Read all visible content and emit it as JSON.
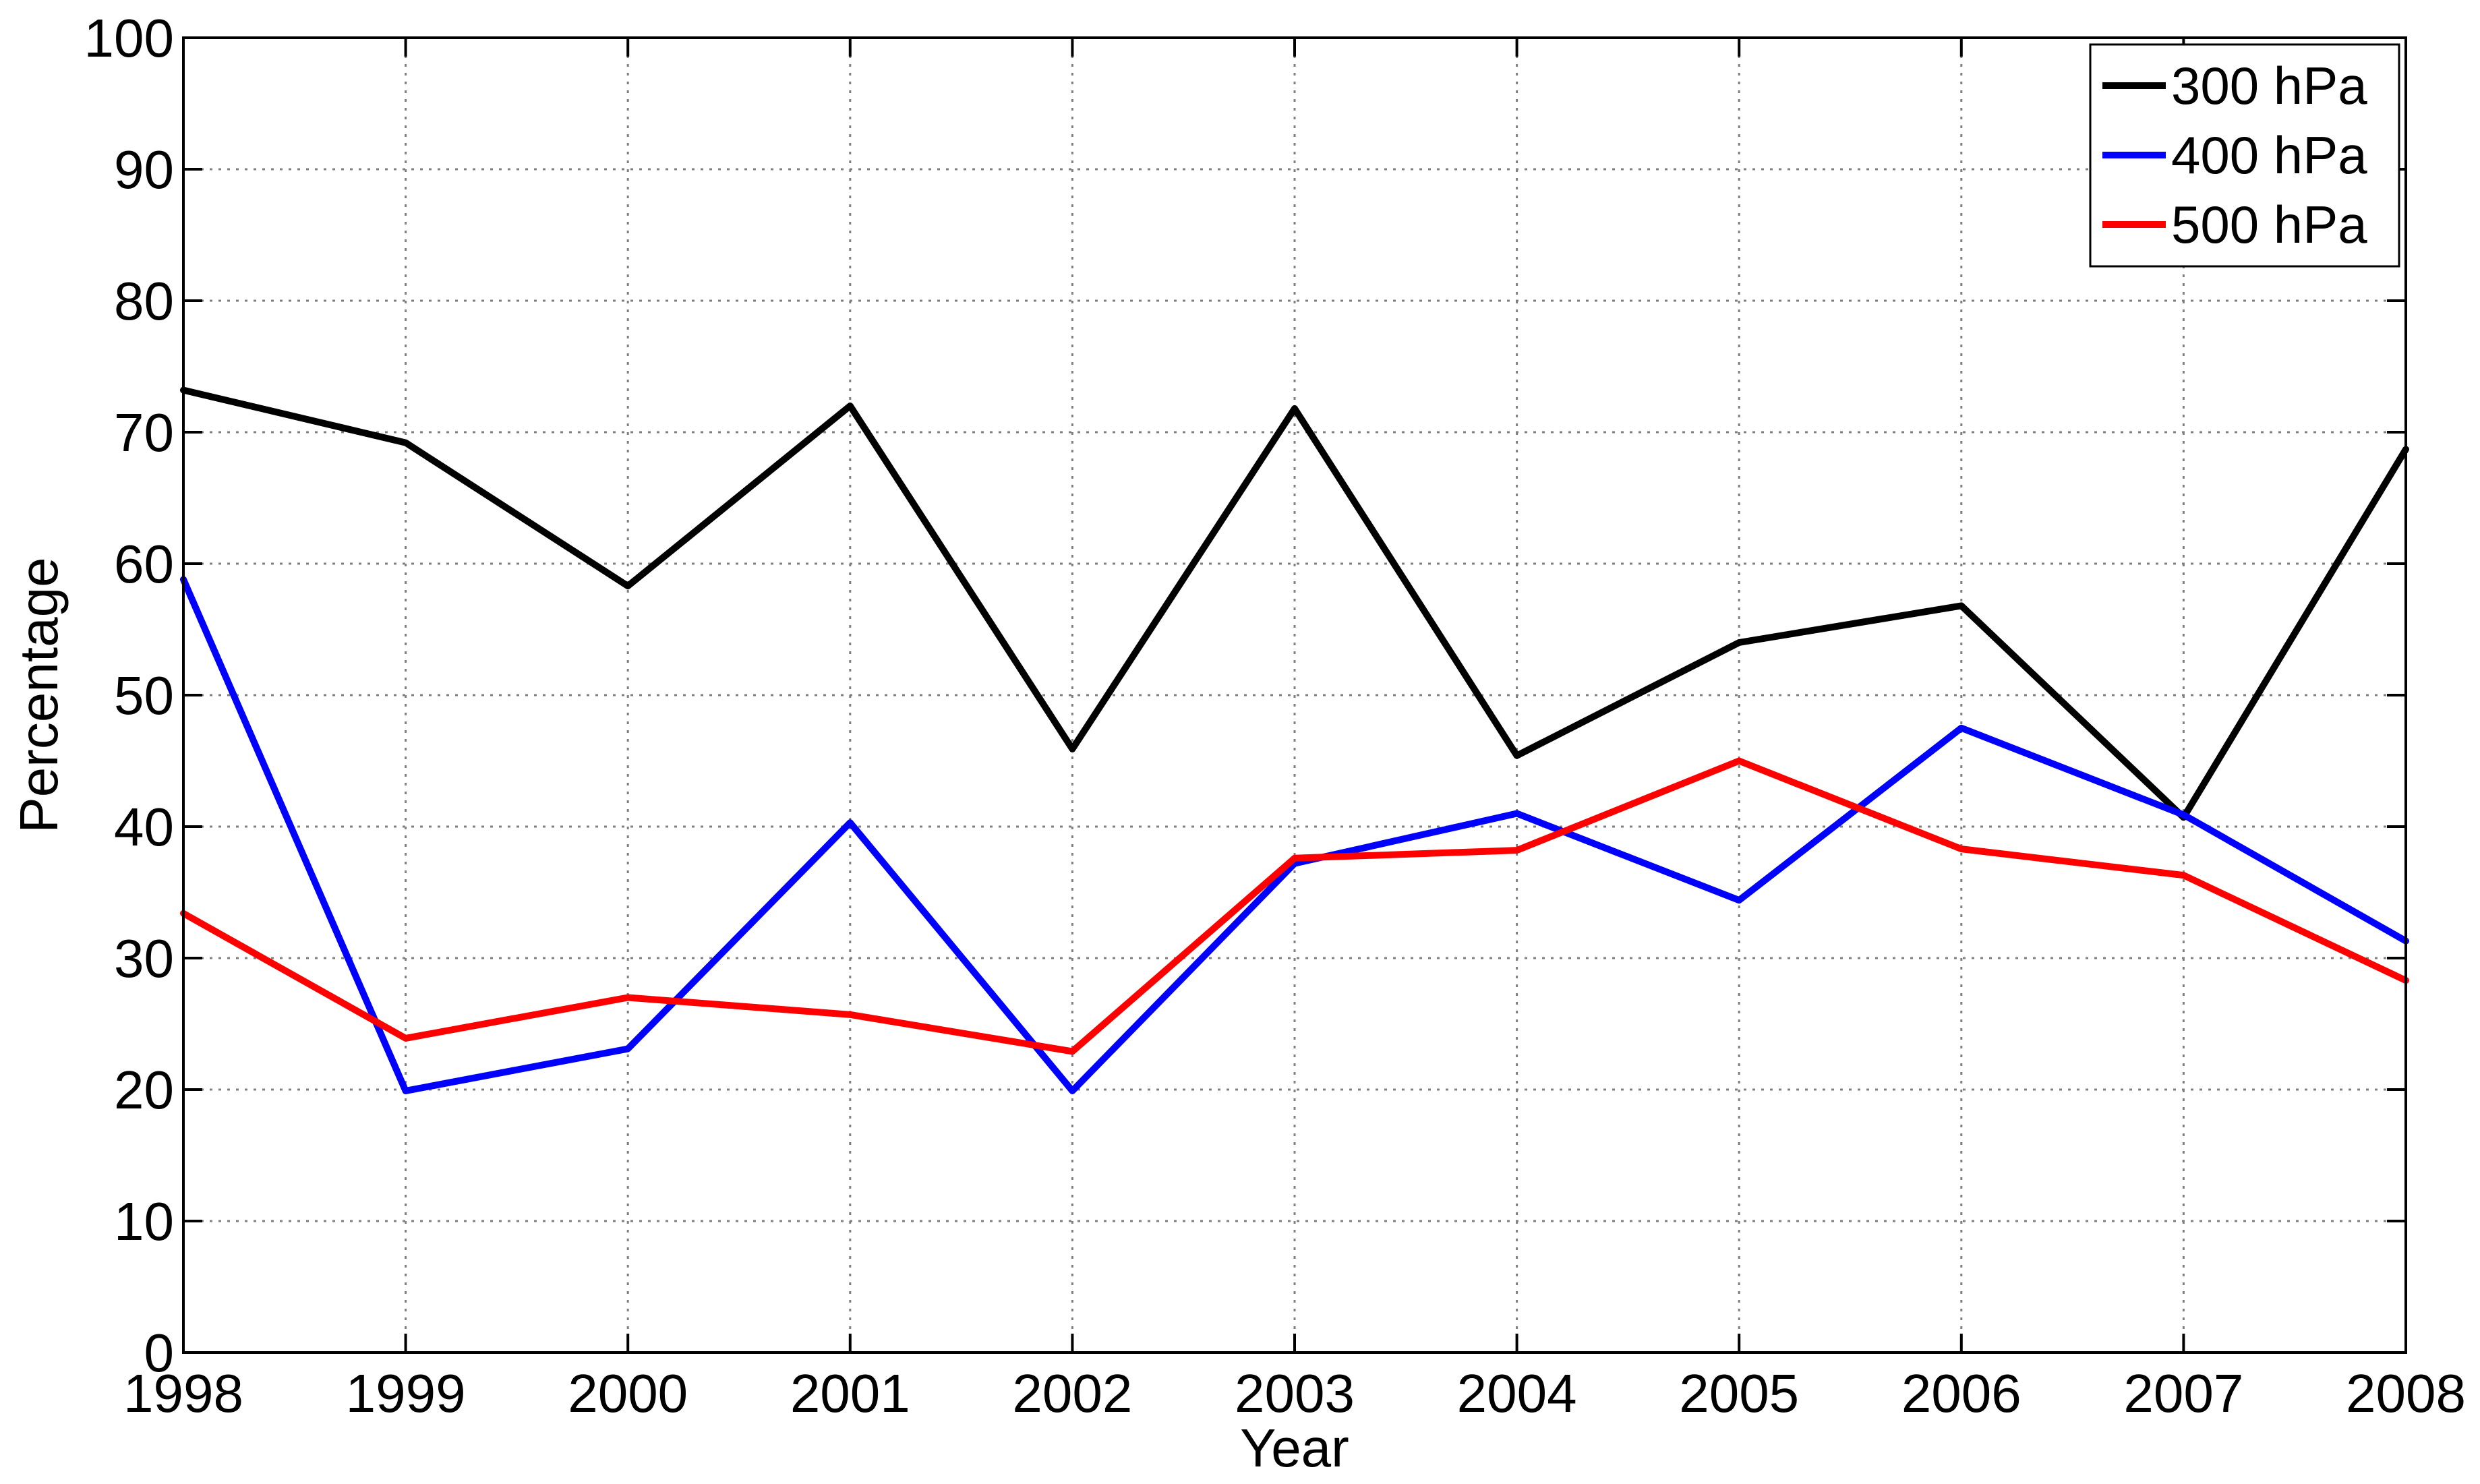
{
  "chart_data": {
    "type": "line",
    "xlabel": "Year",
    "ylabel": "Percentage",
    "x": [
      1998,
      1999,
      2000,
      2001,
      2002,
      2003,
      2004,
      2005,
      2006,
      2007,
      2008
    ],
    "xlim": [
      1998,
      2008
    ],
    "ylim": [
      0,
      100
    ],
    "xticks": [
      "1998",
      "1999",
      "2000",
      "2001",
      "2002",
      "2003",
      "2004",
      "2005",
      "2006",
      "2007",
      "2008"
    ],
    "yticks": [
      "0",
      "10",
      "20",
      "30",
      "40",
      "50",
      "60",
      "70",
      "80",
      "90",
      "100"
    ],
    "grid": true,
    "legend_position": "top-right",
    "series": [
      {
        "name": "300 hPa",
        "color": "#000000",
        "values": [
          73.2,
          69.2,
          58.3,
          72.0,
          45.9,
          71.8,
          45.4,
          54.0,
          56.8,
          40.7,
          68.7
        ]
      },
      {
        "name": "400 hPa",
        "color": "#0000ff",
        "values": [
          58.8,
          19.9,
          23.1,
          40.3,
          19.9,
          37.2,
          41.0,
          34.4,
          47.5,
          40.9,
          31.3
        ]
      },
      {
        "name": "500 hPa",
        "color": "#ff0000",
        "values": [
          33.4,
          23.9,
          27.0,
          25.7,
          22.9,
          37.6,
          38.2,
          45.0,
          38.3,
          36.3,
          28.3
        ]
      }
    ]
  }
}
